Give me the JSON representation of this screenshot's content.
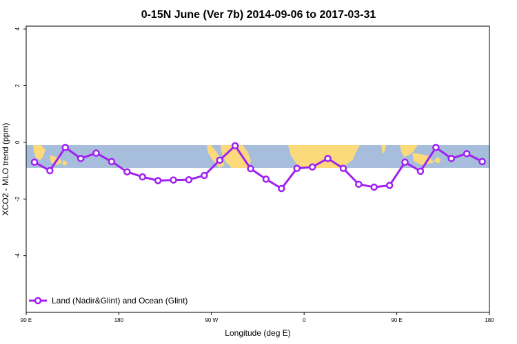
{
  "chart_data": {
    "type": "line",
    "title": "0-15N June (Ver 7b)   2014-09-06 to 2017-03-31",
    "xlabel": "Longitude (deg E)",
    "ylabel": "XCO2 - MLO trend (ppm)",
    "xlim": [
      90,
      540
    ],
    "ylim": [
      -6,
      4.1
    ],
    "x_ticks": [
      {
        "value": 90,
        "label": "90 E"
      },
      {
        "value": 180,
        "label": "180"
      },
      {
        "value": 270,
        "label": "90 W"
      },
      {
        "value": 360,
        "label": "0"
      },
      {
        "value": 450,
        "label": "90 E"
      },
      {
        "value": 540,
        "label": "180"
      }
    ],
    "y_ticks": [
      {
        "value": 4,
        "label": "4"
      },
      {
        "value": 2,
        "label": "2"
      },
      {
        "value": 0,
        "label": "0"
      },
      {
        "value": -2,
        "label": "-2"
      },
      {
        "value": -4,
        "label": "-4"
      }
    ],
    "map_band": {
      "y_top": -0.1,
      "y_bottom": -0.9,
      "ocean_color": "#a7bddc",
      "land_color": "#fcd97a"
    },
    "series": [
      {
        "name": "Land (Nadir&Glint) and Ocean (Glint)",
        "color": "#a020f0",
        "x": [
          98,
          113,
          128,
          143,
          158,
          173,
          188,
          203,
          218,
          233,
          248,
          263,
          278,
          293,
          308,
          323,
          338,
          353,
          368,
          383,
          398,
          413,
          428,
          443,
          458,
          473,
          488,
          503,
          518,
          533
        ],
        "y": [
          -0.7,
          -1.0,
          -0.18,
          -0.57,
          -0.38,
          -0.68,
          -1.04,
          -1.22,
          -1.35,
          -1.33,
          -1.32,
          -1.17,
          -0.63,
          -0.12,
          -0.93,
          -1.3,
          -1.63,
          -0.92,
          -0.87,
          -0.57,
          -0.92,
          -1.48,
          -1.58,
          -1.52,
          -0.7,
          -1.02,
          -0.18,
          -0.57,
          -0.4,
          -0.68
        ]
      }
    ],
    "legend_position": "bottom-left"
  }
}
